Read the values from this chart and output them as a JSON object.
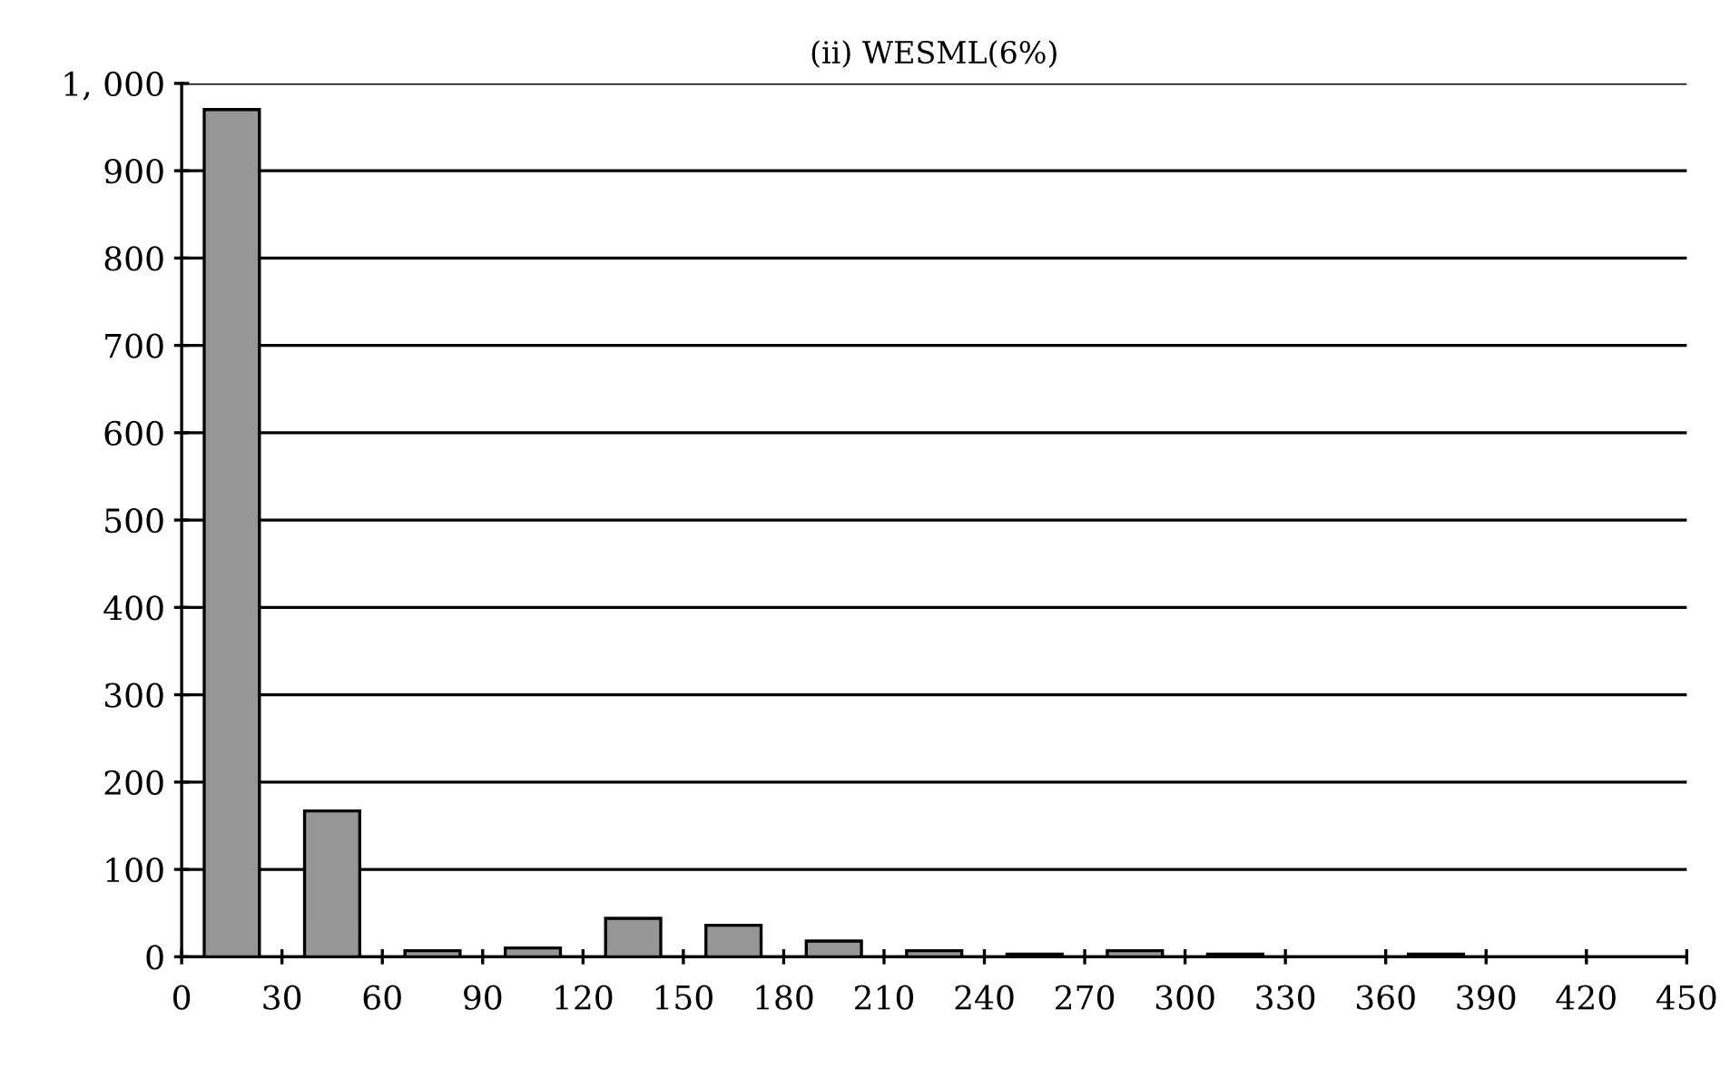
{
  "chart_data": {
    "type": "bar",
    "title": "(ii) WESML(6%)",
    "x": [
      15,
      45,
      75,
      105,
      135,
      165,
      195,
      225,
      255,
      285,
      315,
      345,
      375
    ],
    "values": [
      970,
      167,
      7,
      10,
      44,
      36,
      18,
      7,
      3,
      7,
      3,
      null,
      3
    ],
    "color": "#969696",
    "xlim": [
      0,
      450
    ],
    "xticks": [
      0,
      30,
      60,
      90,
      120,
      150,
      180,
      210,
      240,
      270,
      300,
      330,
      360,
      390,
      420,
      450
    ],
    "ylim": [
      0,
      1000
    ],
    "yticks": [
      0,
      100,
      200,
      300,
      400,
      500,
      600,
      700,
      800,
      900,
      {
        "value": 1000,
        "label": "1, 000"
      }
    ],
    "grid": "y",
    "legend": false
  }
}
